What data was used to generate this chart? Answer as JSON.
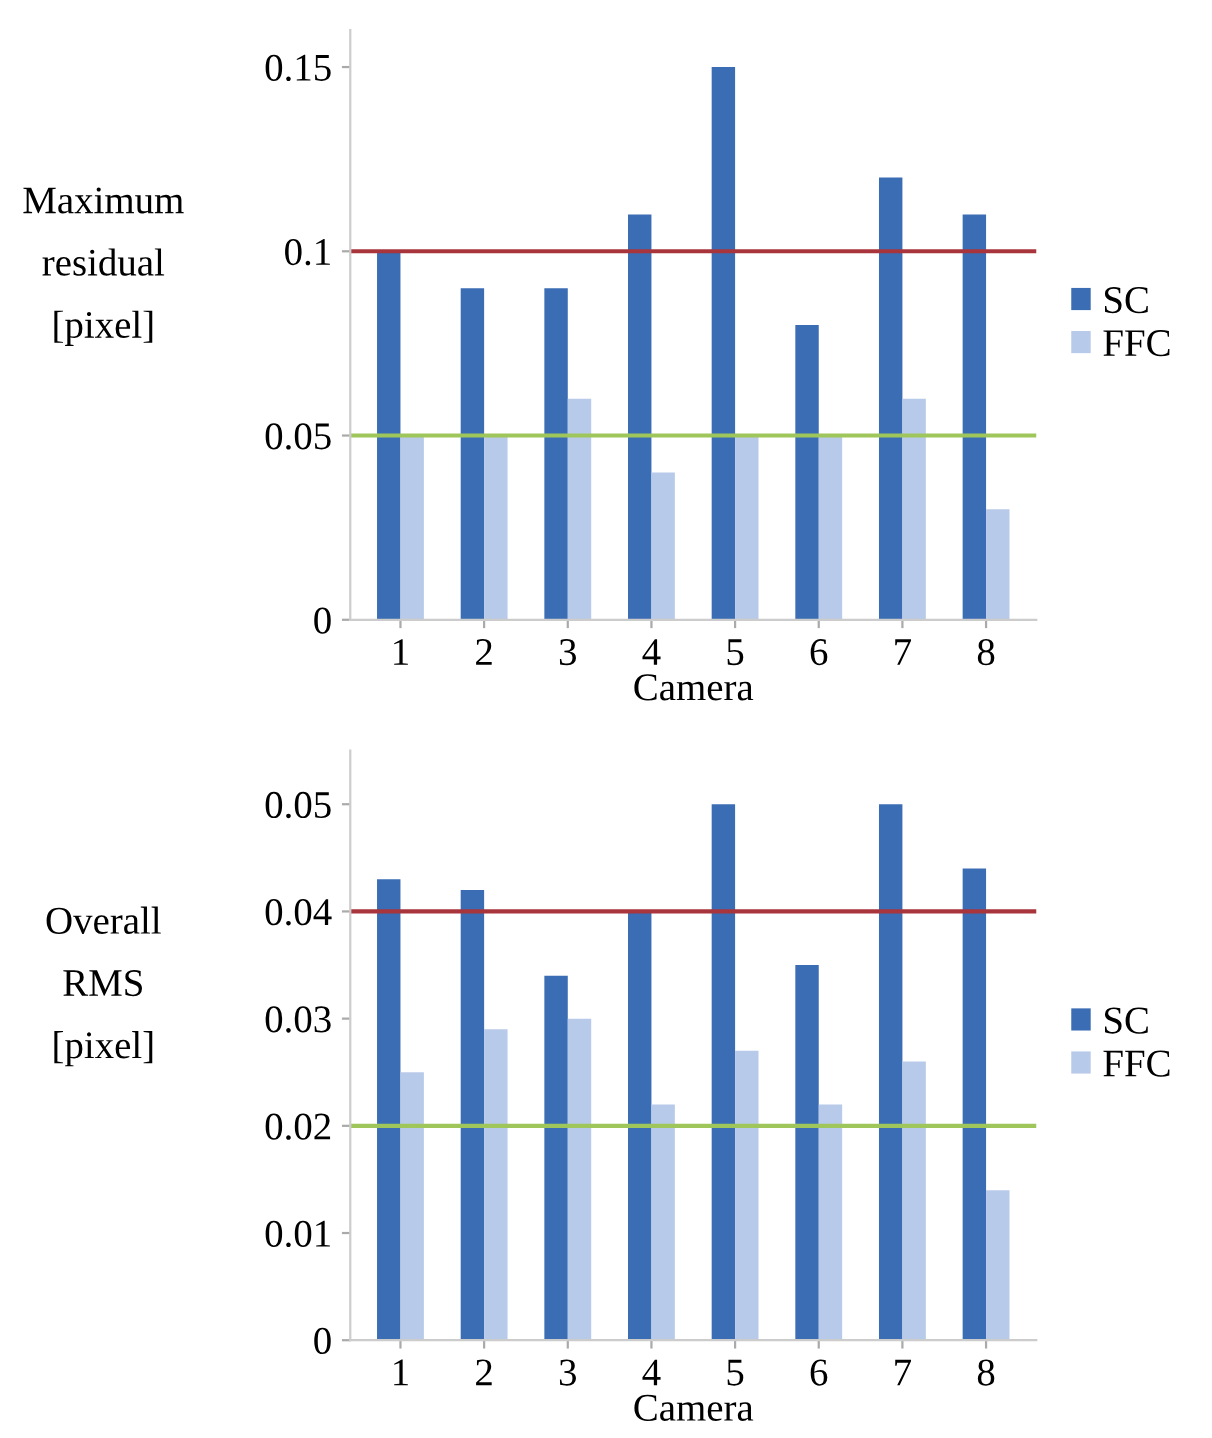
{
  "chart_data": [
    {
      "type": "bar",
      "categories": [
        "1",
        "2",
        "3",
        "4",
        "5",
        "6",
        "7",
        "8"
      ],
      "xlabel": "Camera",
      "ylabel": "Maximum\nresidual\n[pixel]",
      "series": [
        {
          "name": "SC",
          "color": "#3b6db4",
          "values": [
            0.1,
            0.09,
            0.09,
            0.11,
            0.15,
            0.08,
            0.12,
            0.11
          ]
        },
        {
          "name": "FFC",
          "color": "#b8cae9",
          "values": [
            0.05,
            0.05,
            0.06,
            0.04,
            0.05,
            0.05,
            0.06,
            0.03
          ]
        }
      ],
      "ylim": [
        0,
        0.16
      ],
      "yticks": [
        0,
        0.05,
        0.1,
        0.15
      ],
      "grid": false,
      "legend": "right",
      "ref_lines": [
        {
          "axis": "y",
          "value": 0.1,
          "color": "#a8343c"
        },
        {
          "axis": "y",
          "value": 0.05,
          "color": "#9fc65a"
        }
      ]
    },
    {
      "type": "bar",
      "categories": [
        "1",
        "2",
        "3",
        "4",
        "5",
        "6",
        "7",
        "8"
      ],
      "xlabel": "Camera",
      "ylabel": "Overall\nRMS\n[pixel]",
      "series": [
        {
          "name": "SC",
          "color": "#3b6db4",
          "values": [
            0.043,
            0.042,
            0.034,
            0.04,
            0.05,
            0.035,
            0.05,
            0.044
          ]
        },
        {
          "name": "FFC",
          "color": "#b8cae9",
          "values": [
            0.025,
            0.029,
            0.03,
            0.022,
            0.027,
            0.022,
            0.026,
            0.014
          ]
        }
      ],
      "ylim": [
        0,
        0.055
      ],
      "yticks": [
        0,
        0.01,
        0.02,
        0.03,
        0.04,
        0.05
      ],
      "grid": false,
      "legend": "right",
      "ref_lines": [
        {
          "axis": "y",
          "value": 0.04,
          "color": "#a8343c"
        },
        {
          "axis": "y",
          "value": 0.02,
          "color": "#9fc65a"
        }
      ]
    }
  ]
}
